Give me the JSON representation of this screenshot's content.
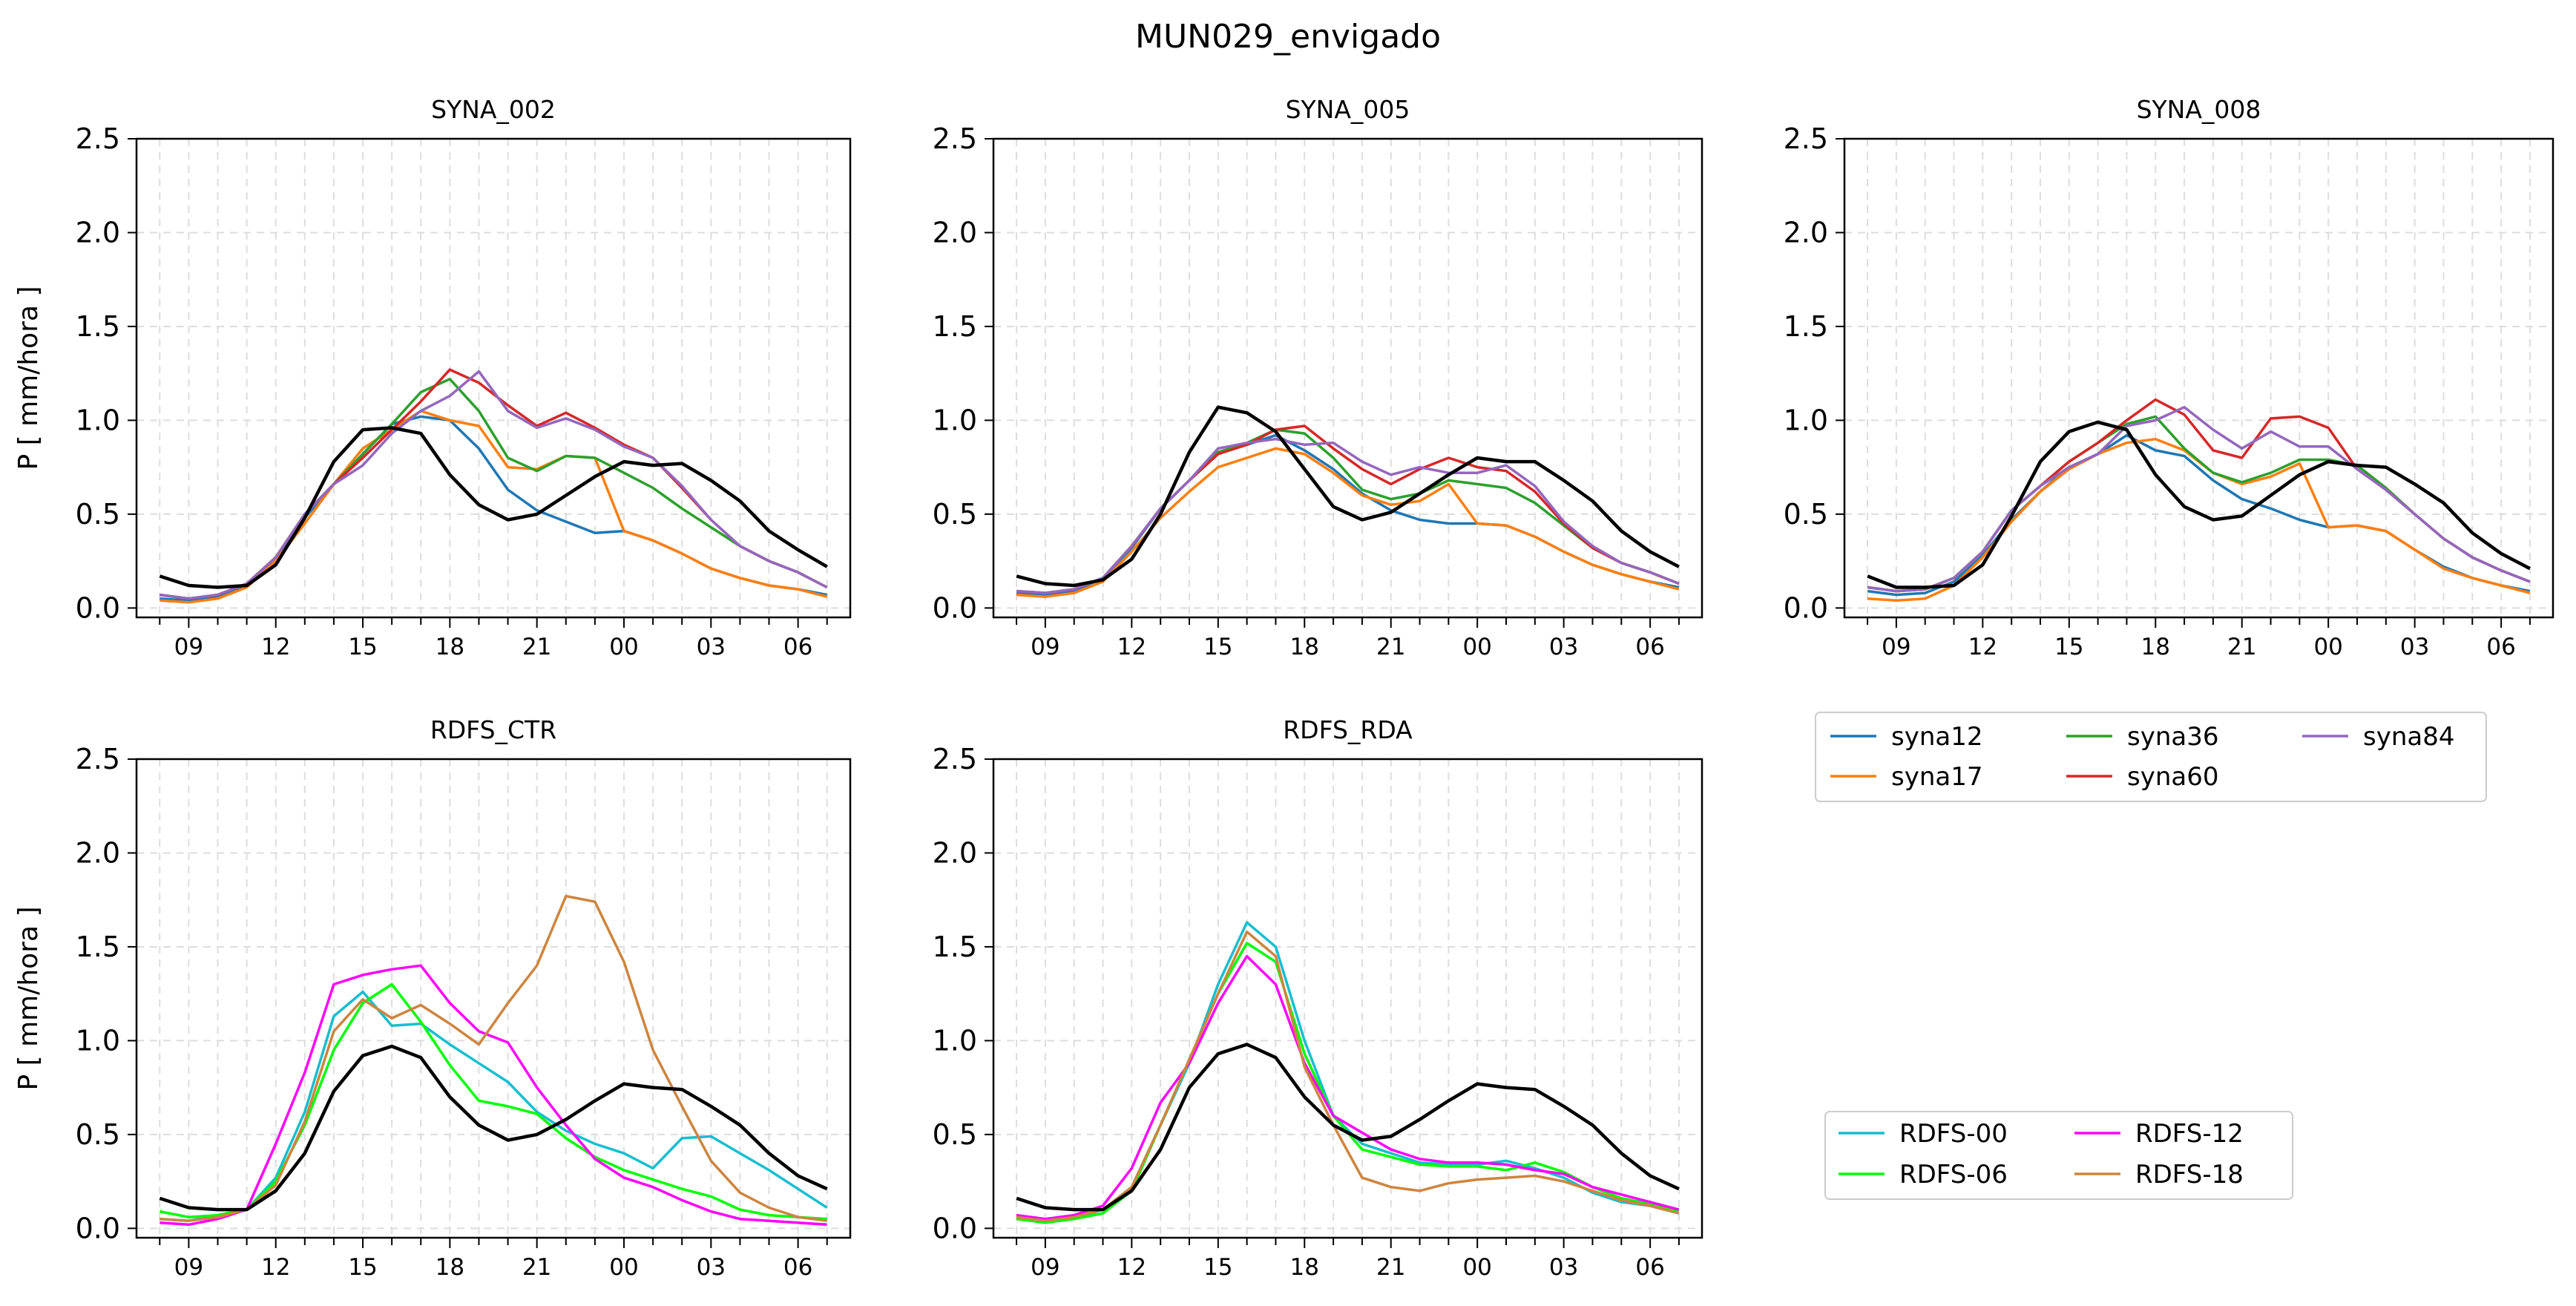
{
  "figure": {
    "title": "MUN029_envigado",
    "ylabel": "P [ mm/hora ]"
  },
  "colors": {
    "syna12": "#1f77b4",
    "syna17": "#ff7f0e",
    "syna36": "#2ca02c",
    "syna60": "#d62728",
    "syna84": "#9467bd",
    "RDFS-00": "#17becf",
    "RDFS-06": "#00ff00",
    "RDFS-12": "#ff00ff",
    "RDFS-18": "#cd853f",
    "obs": "#000000"
  },
  "legends": {
    "syna": [
      "syna12",
      "syna17",
      "syna36",
      "syna60",
      "syna84"
    ],
    "rdfs": [
      "RDFS-00",
      "RDFS-06",
      "RDFS-12",
      "RDFS-18"
    ]
  },
  "chart_data": [
    {
      "type": "line",
      "title": "SYNA_002",
      "ylabel": "P [ mm/hora ]",
      "x_hours": [
        8,
        9,
        10,
        11,
        12,
        13,
        14,
        15,
        16,
        17,
        18,
        19,
        20,
        21,
        22,
        23,
        24,
        25,
        26,
        27,
        28,
        29,
        30,
        31
      ],
      "xtick_labels": [
        "09",
        "12",
        "15",
        "18",
        "21",
        "00",
        "03",
        "06"
      ],
      "ylim": [
        0,
        2.5
      ],
      "yticks": [
        "0.0",
        "0.5",
        "1.0",
        "1.5",
        "2.0",
        "2.5"
      ],
      "grid": true,
      "series": [
        {
          "name": "syna12",
          "values": [
            0.05,
            0.04,
            0.06,
            0.12,
            0.25,
            0.48,
            0.66,
            0.82,
            0.98,
            1.02,
            1.0,
            0.85,
            0.63,
            0.52,
            0.46,
            0.4,
            0.41,
            0.36,
            0.29,
            0.21,
            0.16,
            0.12,
            0.1,
            0.07
          ]
        },
        {
          "name": "syna17",
          "values": [
            0.04,
            0.03,
            0.05,
            0.11,
            0.25,
            0.45,
            0.66,
            0.85,
            0.95,
            1.05,
            1.0,
            0.97,
            0.75,
            0.74,
            0.81,
            0.8,
            0.41,
            0.36,
            0.29,
            0.21,
            0.16,
            0.12,
            0.1,
            0.06
          ]
        },
        {
          "name": "syna36",
          "values": [
            0.07,
            0.05,
            0.07,
            0.13,
            0.27,
            0.5,
            0.66,
            0.82,
            0.98,
            1.15,
            1.22,
            1.05,
            0.8,
            0.73,
            0.81,
            0.8,
            0.72,
            0.64,
            0.53,
            0.43,
            0.33,
            0.25,
            0.19,
            0.11
          ]
        },
        {
          "name": "syna60",
          "values": [
            0.07,
            0.05,
            0.07,
            0.13,
            0.27,
            0.5,
            0.66,
            0.8,
            0.95,
            1.1,
            1.27,
            1.2,
            1.08,
            0.97,
            1.04,
            0.96,
            0.87,
            0.8,
            0.64,
            0.47,
            0.33,
            0.25,
            0.19,
            0.11
          ]
        },
        {
          "name": "syna84",
          "values": [
            0.07,
            0.05,
            0.07,
            0.13,
            0.27,
            0.5,
            0.66,
            0.76,
            0.93,
            1.05,
            1.13,
            1.26,
            1.05,
            0.96,
            1.01,
            0.95,
            0.86,
            0.8,
            0.65,
            0.47,
            0.33,
            0.25,
            0.19,
            0.11
          ]
        },
        {
          "name": "obs",
          "values": [
            0.17,
            0.12,
            0.11,
            0.12,
            0.23,
            0.48,
            0.78,
            0.95,
            0.96,
            0.93,
            0.71,
            0.55,
            0.47,
            0.5,
            0.6,
            0.7,
            0.78,
            0.76,
            0.77,
            0.68,
            0.57,
            0.41,
            0.31,
            0.22
          ]
        }
      ]
    },
    {
      "type": "line",
      "title": "SYNA_005",
      "ylabel": "",
      "x_hours": [
        8,
        9,
        10,
        11,
        12,
        13,
        14,
        15,
        16,
        17,
        18,
        19,
        20,
        21,
        22,
        23,
        24,
        25,
        26,
        27,
        28,
        29,
        30,
        31
      ],
      "xtick_labels": [
        "09",
        "12",
        "15",
        "18",
        "21",
        "00",
        "03",
        "06"
      ],
      "ylim": [
        0,
        2.5
      ],
      "yticks": [
        "0.0",
        "0.5",
        "1.0",
        "1.5",
        "2.0",
        "2.5"
      ],
      "grid": true,
      "series": [
        {
          "name": "syna12",
          "values": [
            0.08,
            0.07,
            0.09,
            0.16,
            0.32,
            0.53,
            0.68,
            0.83,
            0.87,
            0.92,
            0.84,
            0.74,
            0.61,
            0.52,
            0.47,
            0.45,
            0.45,
            0.44,
            0.38,
            0.3,
            0.23,
            0.18,
            0.14,
            0.11
          ]
        },
        {
          "name": "syna17",
          "values": [
            0.07,
            0.06,
            0.08,
            0.14,
            0.3,
            0.48,
            0.62,
            0.75,
            0.8,
            0.85,
            0.82,
            0.72,
            0.6,
            0.55,
            0.57,
            0.66,
            0.45,
            0.44,
            0.38,
            0.3,
            0.23,
            0.18,
            0.14,
            0.1
          ]
        },
        {
          "name": "syna36",
          "values": [
            0.09,
            0.08,
            0.1,
            0.16,
            0.33,
            0.53,
            0.68,
            0.83,
            0.88,
            0.95,
            0.93,
            0.8,
            0.63,
            0.58,
            0.61,
            0.68,
            0.66,
            0.64,
            0.56,
            0.44,
            0.32,
            0.24,
            0.19,
            0.13
          ]
        },
        {
          "name": "syna60",
          "values": [
            0.09,
            0.08,
            0.1,
            0.16,
            0.33,
            0.53,
            0.68,
            0.82,
            0.87,
            0.95,
            0.97,
            0.85,
            0.74,
            0.66,
            0.74,
            0.8,
            0.75,
            0.73,
            0.62,
            0.45,
            0.32,
            0.24,
            0.19,
            0.13
          ]
        },
        {
          "name": "syna84",
          "values": [
            0.09,
            0.08,
            0.1,
            0.16,
            0.33,
            0.53,
            0.68,
            0.85,
            0.88,
            0.9,
            0.87,
            0.88,
            0.78,
            0.71,
            0.75,
            0.72,
            0.72,
            0.76,
            0.65,
            0.46,
            0.33,
            0.24,
            0.19,
            0.13
          ]
        },
        {
          "name": "obs",
          "values": [
            0.17,
            0.13,
            0.12,
            0.15,
            0.26,
            0.5,
            0.83,
            1.07,
            1.04,
            0.94,
            0.74,
            0.54,
            0.47,
            0.51,
            0.61,
            0.71,
            0.8,
            0.78,
            0.78,
            0.68,
            0.57,
            0.41,
            0.3,
            0.22
          ]
        }
      ]
    },
    {
      "type": "line",
      "title": "SYNA_008",
      "ylabel": "",
      "x_hours": [
        8,
        9,
        10,
        11,
        12,
        13,
        14,
        15,
        16,
        17,
        18,
        19,
        20,
        21,
        22,
        23,
        24,
        25,
        26,
        27,
        28,
        29,
        30,
        31
      ],
      "xtick_labels": [
        "09",
        "12",
        "15",
        "18",
        "21",
        "00",
        "03",
        "06"
      ],
      "ylim": [
        0,
        2.5
      ],
      "yticks": [
        "0.0",
        "0.5",
        "1.0",
        "1.5",
        "2.0",
        "2.5"
      ],
      "grid": true,
      "series": [
        {
          "name": "syna12",
          "values": [
            0.09,
            0.07,
            0.08,
            0.14,
            0.28,
            0.47,
            0.62,
            0.75,
            0.82,
            0.92,
            0.84,
            0.81,
            0.68,
            0.58,
            0.53,
            0.47,
            0.43,
            0.44,
            0.41,
            0.31,
            0.22,
            0.16,
            0.12,
            0.09
          ]
        },
        {
          "name": "syna17",
          "values": [
            0.05,
            0.04,
            0.05,
            0.12,
            0.27,
            0.46,
            0.62,
            0.74,
            0.82,
            0.88,
            0.9,
            0.84,
            0.72,
            0.66,
            0.7,
            0.77,
            0.43,
            0.44,
            0.41,
            0.31,
            0.21,
            0.16,
            0.12,
            0.08
          ]
        },
        {
          "name": "syna36",
          "values": [
            0.11,
            0.09,
            0.1,
            0.16,
            0.3,
            0.52,
            0.65,
            0.78,
            0.88,
            0.98,
            1.02,
            0.85,
            0.72,
            0.67,
            0.72,
            0.79,
            0.79,
            0.76,
            0.64,
            0.5,
            0.37,
            0.27,
            0.2,
            0.14
          ]
        },
        {
          "name": "syna60",
          "values": [
            0.11,
            0.09,
            0.1,
            0.16,
            0.3,
            0.52,
            0.65,
            0.78,
            0.88,
            1.0,
            1.11,
            1.03,
            0.84,
            0.8,
            1.01,
            1.02,
            0.96,
            0.74,
            0.63,
            0.5,
            0.37,
            0.27,
            0.2,
            0.14
          ]
        },
        {
          "name": "syna84",
          "values": [
            0.11,
            0.09,
            0.1,
            0.16,
            0.3,
            0.52,
            0.65,
            0.75,
            0.82,
            0.97,
            1.0,
            1.07,
            0.95,
            0.85,
            0.94,
            0.86,
            0.86,
            0.74,
            0.63,
            0.5,
            0.37,
            0.27,
            0.2,
            0.14
          ]
        },
        {
          "name": "obs",
          "values": [
            0.17,
            0.11,
            0.11,
            0.12,
            0.23,
            0.49,
            0.78,
            0.94,
            0.99,
            0.95,
            0.71,
            0.54,
            0.47,
            0.49,
            0.6,
            0.71,
            0.78,
            0.76,
            0.75,
            0.66,
            0.56,
            0.4,
            0.29,
            0.21
          ]
        }
      ]
    },
    {
      "type": "line",
      "title": "RDFS_CTR",
      "ylabel": "P [ mm/hora ]",
      "x_hours": [
        8,
        9,
        10,
        11,
        12,
        13,
        14,
        15,
        16,
        17,
        18,
        19,
        20,
        21,
        22,
        23,
        24,
        25,
        26,
        27,
        28,
        29,
        30,
        31
      ],
      "xtick_labels": [
        "09",
        "12",
        "15",
        "18",
        "21",
        "00",
        "03",
        "06"
      ],
      "ylim": [
        0,
        2.5
      ],
      "yticks": [
        "0.0",
        "0.5",
        "1.0",
        "1.5",
        "2.0",
        "2.5"
      ],
      "grid": true,
      "series": [
        {
          "name": "RDFS-00",
          "values": [
            0.05,
            0.04,
            0.07,
            0.1,
            0.27,
            0.62,
            1.13,
            1.26,
            1.08,
            1.09,
            0.98,
            0.88,
            0.78,
            0.62,
            0.52,
            0.45,
            0.4,
            0.32,
            0.48,
            0.49,
            0.4,
            0.31,
            0.21,
            0.11
          ]
        },
        {
          "name": "RDFS-06",
          "values": [
            0.09,
            0.06,
            0.07,
            0.1,
            0.25,
            0.55,
            0.95,
            1.2,
            1.3,
            1.1,
            0.87,
            0.68,
            0.65,
            0.61,
            0.48,
            0.38,
            0.31,
            0.26,
            0.21,
            0.17,
            0.1,
            0.07,
            0.06,
            0.05
          ]
        },
        {
          "name": "RDFS-12",
          "values": [
            0.03,
            0.02,
            0.05,
            0.1,
            0.45,
            0.83,
            1.3,
            1.35,
            1.38,
            1.4,
            1.2,
            1.05,
            0.99,
            0.75,
            0.55,
            0.37,
            0.27,
            0.22,
            0.15,
            0.09,
            0.05,
            0.04,
            0.03,
            0.02
          ]
        },
        {
          "name": "RDFS-18",
          "values": [
            0.05,
            0.04,
            0.06,
            0.1,
            0.23,
            0.57,
            1.05,
            1.22,
            1.12,
            1.19,
            1.09,
            0.98,
            1.2,
            1.4,
            1.77,
            1.74,
            1.42,
            0.95,
            0.65,
            0.36,
            0.19,
            0.11,
            0.06,
            0.04
          ]
        },
        {
          "name": "obs",
          "values": [
            0.16,
            0.11,
            0.1,
            0.1,
            0.2,
            0.4,
            0.73,
            0.92,
            0.97,
            0.91,
            0.7,
            0.55,
            0.47,
            0.5,
            0.58,
            0.68,
            0.77,
            0.75,
            0.74,
            0.65,
            0.55,
            0.4,
            0.28,
            0.21
          ]
        }
      ]
    },
    {
      "type": "line",
      "title": "RDFS_RDA",
      "ylabel": "",
      "x_hours": [
        8,
        9,
        10,
        11,
        12,
        13,
        14,
        15,
        16,
        17,
        18,
        19,
        20,
        21,
        22,
        23,
        24,
        25,
        26,
        27,
        28,
        29,
        30,
        31
      ],
      "xtick_labels": [
        "09",
        "12",
        "15",
        "18",
        "21",
        "00",
        "03",
        "06"
      ],
      "ylim": [
        0,
        2.5
      ],
      "yticks": [
        "0.0",
        "0.5",
        "1.0",
        "1.5",
        "2.0",
        "2.5"
      ],
      "grid": true,
      "series": [
        {
          "name": "RDFS-00",
          "values": [
            0.05,
            0.04,
            0.05,
            0.1,
            0.22,
            0.55,
            0.88,
            1.3,
            1.63,
            1.5,
            1.0,
            0.6,
            0.45,
            0.4,
            0.35,
            0.34,
            0.34,
            0.36,
            0.32,
            0.27,
            0.19,
            0.14,
            0.12,
            0.08
          ]
        },
        {
          "name": "RDFS-06",
          "values": [
            0.05,
            0.03,
            0.05,
            0.08,
            0.2,
            0.55,
            0.9,
            1.25,
            1.52,
            1.42,
            0.93,
            0.6,
            0.42,
            0.38,
            0.34,
            0.33,
            0.33,
            0.31,
            0.35,
            0.3,
            0.22,
            0.16,
            0.13,
            0.09
          ]
        },
        {
          "name": "RDFS-12",
          "values": [
            0.07,
            0.05,
            0.07,
            0.12,
            0.32,
            0.67,
            0.88,
            1.2,
            1.45,
            1.3,
            0.88,
            0.6,
            0.51,
            0.42,
            0.37,
            0.35,
            0.35,
            0.34,
            0.31,
            0.29,
            0.22,
            0.18,
            0.14,
            0.1
          ]
        },
        {
          "name": "RDFS-18",
          "values": [
            0.06,
            0.04,
            0.06,
            0.1,
            0.22,
            0.55,
            0.9,
            1.25,
            1.58,
            1.45,
            0.86,
            0.55,
            0.27,
            0.22,
            0.2,
            0.24,
            0.26,
            0.27,
            0.28,
            0.25,
            0.2,
            0.15,
            0.12,
            0.08
          ]
        },
        {
          "name": "obs",
          "values": [
            0.16,
            0.11,
            0.1,
            0.1,
            0.2,
            0.42,
            0.75,
            0.93,
            0.98,
            0.91,
            0.7,
            0.55,
            0.47,
            0.49,
            0.58,
            0.68,
            0.77,
            0.75,
            0.74,
            0.65,
            0.55,
            0.4,
            0.28,
            0.21
          ]
        }
      ]
    }
  ]
}
